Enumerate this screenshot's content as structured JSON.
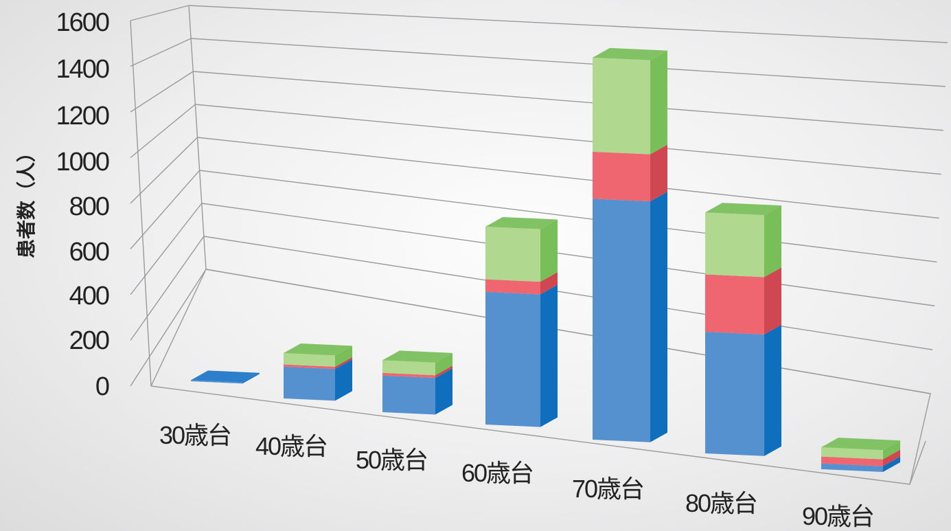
{
  "chart_data": {
    "type": "bar",
    "stacked": true,
    "three_d": true,
    "ylabel": "患者数（人）",
    "ylim": [
      0,
      1600
    ],
    "yticks": [
      0,
      200,
      400,
      600,
      800,
      1000,
      1200,
      1400,
      1600
    ],
    "grid": true,
    "legend": "none",
    "categories": [
      "30歳台",
      "40歳台",
      "50歳台",
      "60歳台",
      "70歳台",
      "80歳台",
      "90歳台"
    ],
    "series": [
      {
        "values": [
          5,
          140,
          160,
          580,
          1050,
          530,
          25
        ],
        "color": "#5591cf"
      },
      {
        "values": [
          0,
          10,
          12,
          55,
          205,
          250,
          30
        ],
        "color": "#ef6670"
      },
      {
        "values": [
          0,
          50,
          55,
          230,
          410,
          270,
          40
        ],
        "color": "#b0d88e"
      }
    ]
  }
}
